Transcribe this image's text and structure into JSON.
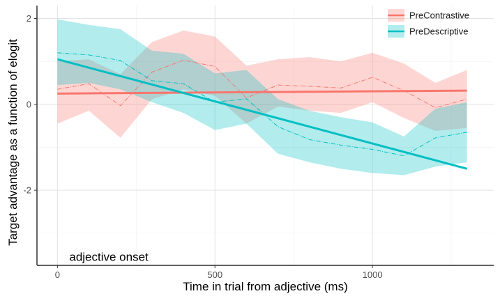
{
  "chart_data": {
    "type": "line",
    "xlabel": "Time in trial from adjective (ms)",
    "ylabel": "Target advantage as a function of elogit",
    "xlim": [
      -65,
      1385
    ],
    "ylim": [
      -3.75,
      2.3
    ],
    "x_ticks": [
      0,
      500,
      1000
    ],
    "y_ticks": [
      -2,
      0,
      2
    ],
    "x_minor_grid": [
      250,
      750,
      1250
    ],
    "y_minor_grid": [
      -3,
      -1,
      1
    ],
    "grid": true,
    "legend_position": "top-right",
    "x": [
      0,
      100,
      200,
      300,
      400,
      500,
      600,
      700,
      800,
      900,
      1000,
      1100,
      1200,
      1300
    ],
    "series": [
      {
        "name": "PreContrastive",
        "color": "#F8766D",
        "ribbon_color": "#F8766D",
        "mean": [
          0.35,
          0.48,
          -0.03,
          0.75,
          1.03,
          0.88,
          0.15,
          0.45,
          0.42,
          0.38,
          0.63,
          0.32,
          -0.08,
          0.12
        ],
        "upper": [
          1.0,
          1.05,
          0.7,
          1.45,
          1.72,
          1.58,
          0.9,
          1.05,
          1.1,
          1.0,
          1.2,
          0.95,
          0.5,
          0.8
        ],
        "lower": [
          -0.45,
          -0.15,
          -0.78,
          0.12,
          0.35,
          0.2,
          -0.45,
          -0.05,
          -0.15,
          -0.2,
          0.05,
          -0.32,
          -0.62,
          -0.55
        ],
        "fit": [
          0.25,
          0.32
        ]
      },
      {
        "name": "PreDescriptive",
        "color": "#00BFC4",
        "ribbon_color": "#00BFC4",
        "mean": [
          1.2,
          1.15,
          1.02,
          0.55,
          0.48,
          0.05,
          0.13,
          -0.52,
          -0.82,
          -0.95,
          -1.05,
          -1.2,
          -0.78,
          -0.65
        ],
        "upper": [
          1.98,
          1.85,
          1.75,
          1.25,
          1.18,
          0.72,
          0.8,
          0.12,
          -0.15,
          -0.3,
          -0.42,
          -0.75,
          -0.1,
          0.05
        ],
        "lower": [
          0.45,
          0.5,
          0.35,
          0.05,
          -0.2,
          -0.6,
          -0.45,
          -1.15,
          -1.35,
          -1.5,
          -1.6,
          -1.65,
          -1.45,
          -1.35
        ],
        "fit": [
          1.05,
          -1.5
        ]
      }
    ],
    "annotations": [
      {
        "text": "adjective onset",
        "x": 0,
        "y": -3.55
      }
    ]
  }
}
